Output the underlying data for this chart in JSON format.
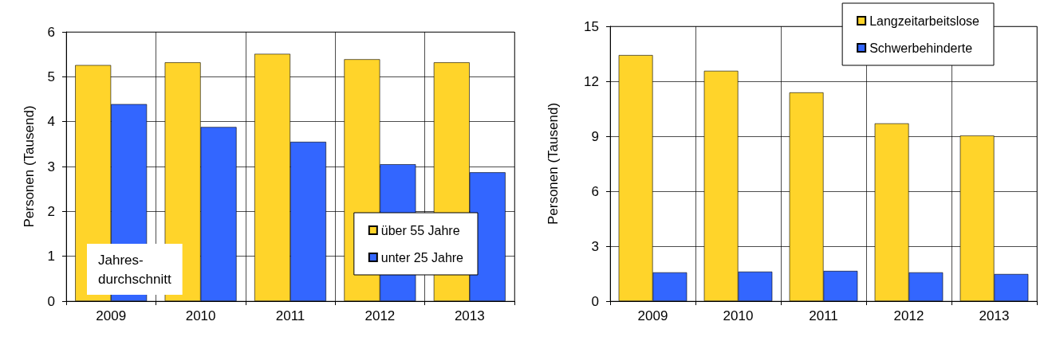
{
  "chart_data": [
    {
      "type": "bar",
      "ylabel": "Personen (Tausend)",
      "categories": [
        "2009",
        "2010",
        "2011",
        "2012",
        "2013"
      ],
      "series": [
        {
          "name": "über 55 Jahre",
          "color": "#ffd42a",
          "values": [
            5.26,
            5.32,
            5.51,
            5.39,
            5.32
          ]
        },
        {
          "name": "unter 25 Jahre",
          "color": "#3366ff",
          "values": [
            4.39,
            3.88,
            3.55,
            3.05,
            2.87
          ]
        }
      ],
      "ylim": [
        0,
        6
      ],
      "yticks": [
        0,
        1,
        2,
        3,
        4,
        5,
        6
      ],
      "grid": true,
      "legend": "bottom right",
      "annotations": [
        "Jahres-\ndurchschnitt"
      ]
    },
    {
      "type": "bar",
      "ylabel": "Personen (Tausend)",
      "categories": [
        "2009",
        "2010",
        "2011",
        "2012",
        "2013"
      ],
      "series": [
        {
          "name": "Langzeitarbeitslose",
          "color": "#ffd42a",
          "values": [
            13.43,
            12.57,
            11.39,
            9.7,
            9.04
          ]
        },
        {
          "name": "Schwerbehinderte",
          "color": "#3366ff",
          "values": [
            1.57,
            1.61,
            1.65,
            1.57,
            1.48
          ]
        }
      ],
      "ylim": [
        0,
        15
      ],
      "yticks": [
        0,
        3,
        6,
        9,
        12,
        15
      ],
      "grid": true,
      "legend": "top right"
    }
  ]
}
